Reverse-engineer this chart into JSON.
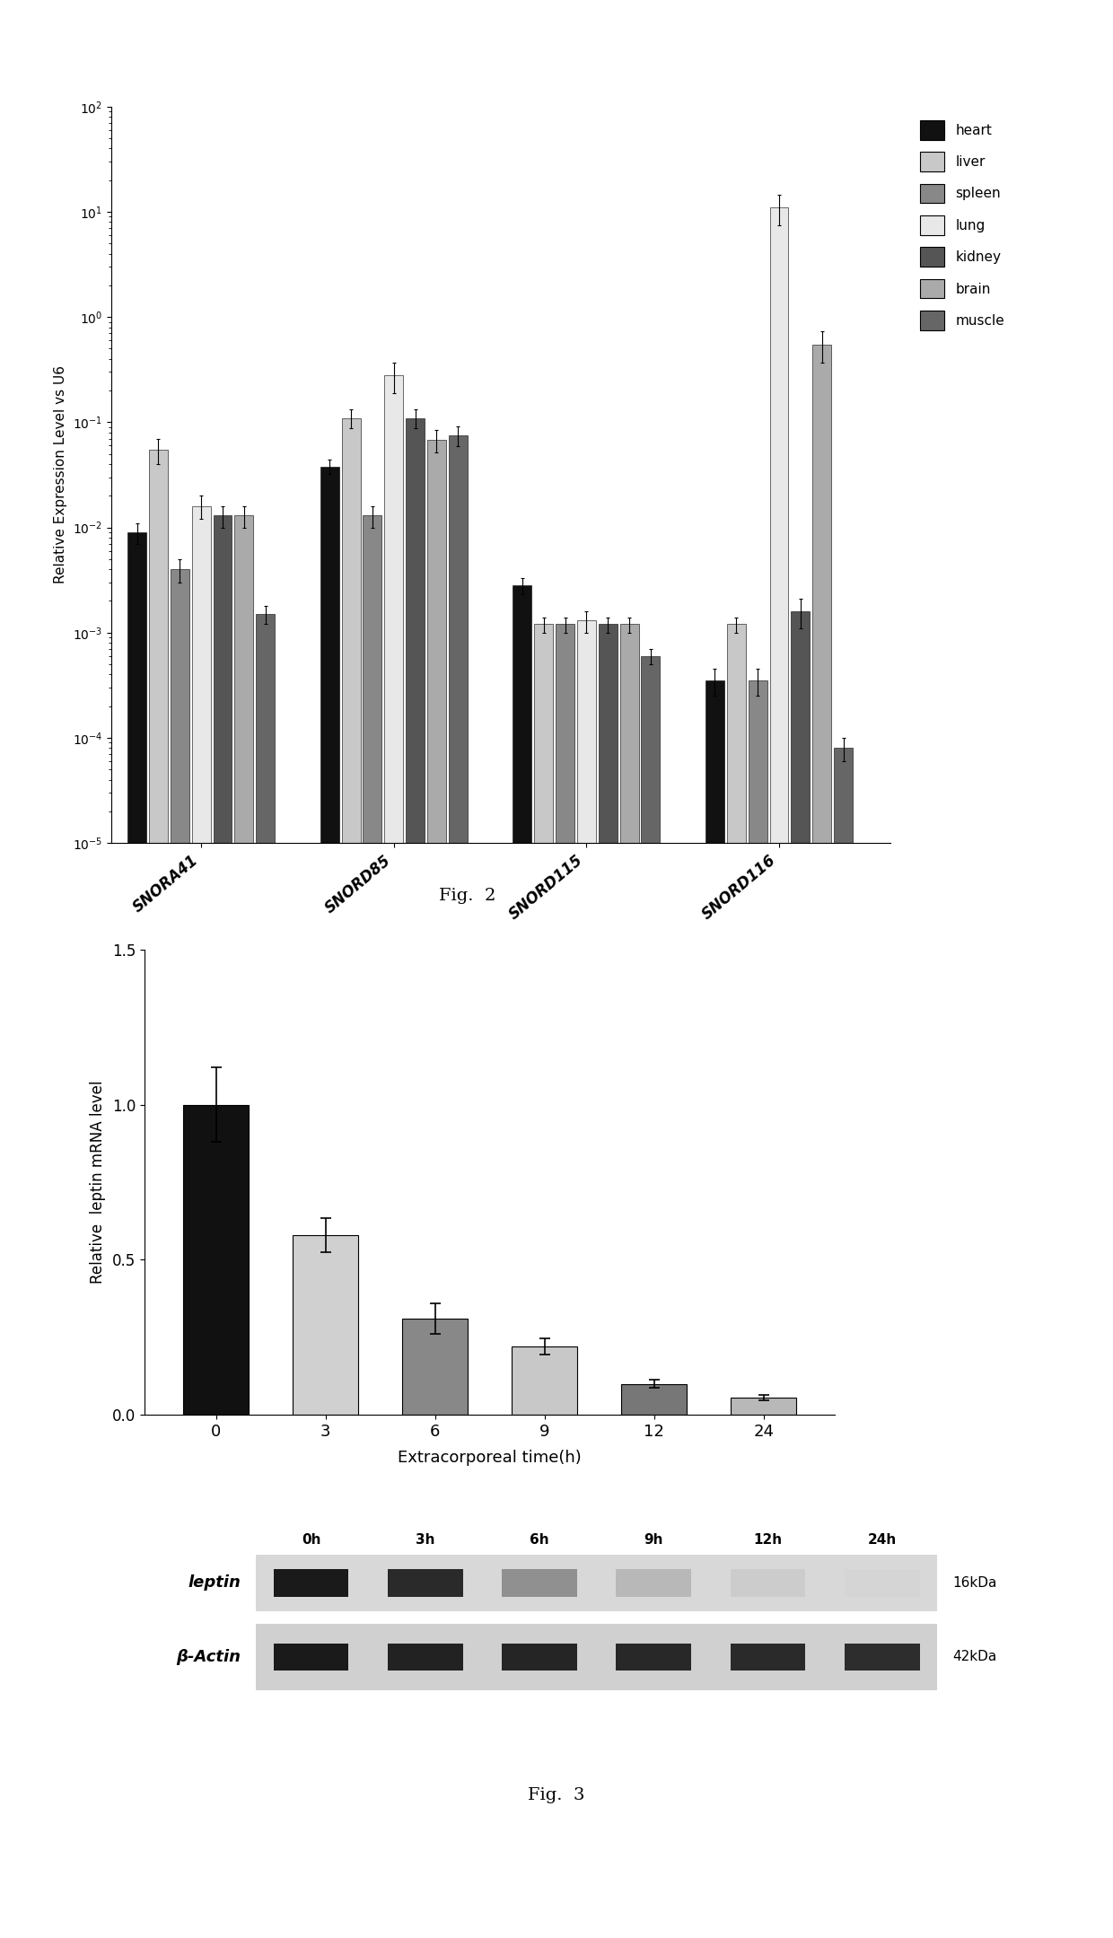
{
  "fig2": {
    "title": "Fig.  2",
    "ylabel": "Relative Expression Level vs U6",
    "categories": [
      "SNORA41",
      "SNORD85",
      "SNORD115",
      "SNORD116"
    ],
    "tissues": [
      "heart",
      "liver",
      "spleen",
      "lung",
      "kidney",
      "brain",
      "muscle"
    ],
    "fill_colors": [
      "#111111",
      "#c8c8c8",
      "#888888",
      "#e8e8e8",
      "#555555",
      "#aaaaaa",
      "#666666"
    ],
    "bar_values": {
      "SNORA41": [
        0.009,
        0.055,
        0.004,
        0.016,
        0.013,
        0.013,
        0.0015
      ],
      "SNORD85": [
        0.038,
        0.11,
        0.013,
        0.28,
        0.11,
        0.068,
        0.075
      ],
      "SNORD115": [
        0.0028,
        0.0012,
        0.0012,
        0.0013,
        0.0012,
        0.0012,
        0.0006
      ],
      "SNORD116": [
        0.00035,
        0.0012,
        0.00035,
        11.0,
        0.0016,
        0.55,
        8e-05
      ]
    },
    "bar_errors": {
      "SNORA41": [
        0.002,
        0.015,
        0.001,
        0.004,
        0.003,
        0.003,
        0.0003
      ],
      "SNORD85": [
        0.006,
        0.022,
        0.003,
        0.09,
        0.022,
        0.016,
        0.016
      ],
      "SNORD115": [
        0.0005,
        0.0002,
        0.0002,
        0.0003,
        0.0002,
        0.0002,
        0.0001
      ],
      "SNORD116": [
        0.0001,
        0.0002,
        0.0001,
        3.5,
        0.0005,
        0.18,
        2e-05
      ]
    }
  },
  "fig3_bar": {
    "title": "Fig.  3",
    "ylabel": "Relative  leptin mRNA level",
    "xlabel": "Extracorporeal time(h)",
    "categories": [
      "0",
      "3",
      "6",
      "9",
      "12",
      "24"
    ],
    "values": [
      1.0,
      0.58,
      0.31,
      0.22,
      0.1,
      0.055
    ],
    "errors": [
      0.12,
      0.055,
      0.05,
      0.025,
      0.012,
      0.008
    ],
    "colors": [
      "#111111",
      "#d0d0d0",
      "#888888",
      "#c8c8c8",
      "#777777",
      "#b8b8b8"
    ],
    "ylim": [
      0,
      1.5
    ],
    "yticks": [
      0.0,
      0.5,
      1.0,
      1.5
    ]
  },
  "fig3_western": {
    "labels_top": [
      "0h",
      "3h",
      "6h",
      "9h",
      "12h",
      "24h"
    ],
    "row_labels": [
      "leptin",
      "β-Actin"
    ],
    "kda_labels": [
      "16kDa",
      "42kDa"
    ]
  }
}
